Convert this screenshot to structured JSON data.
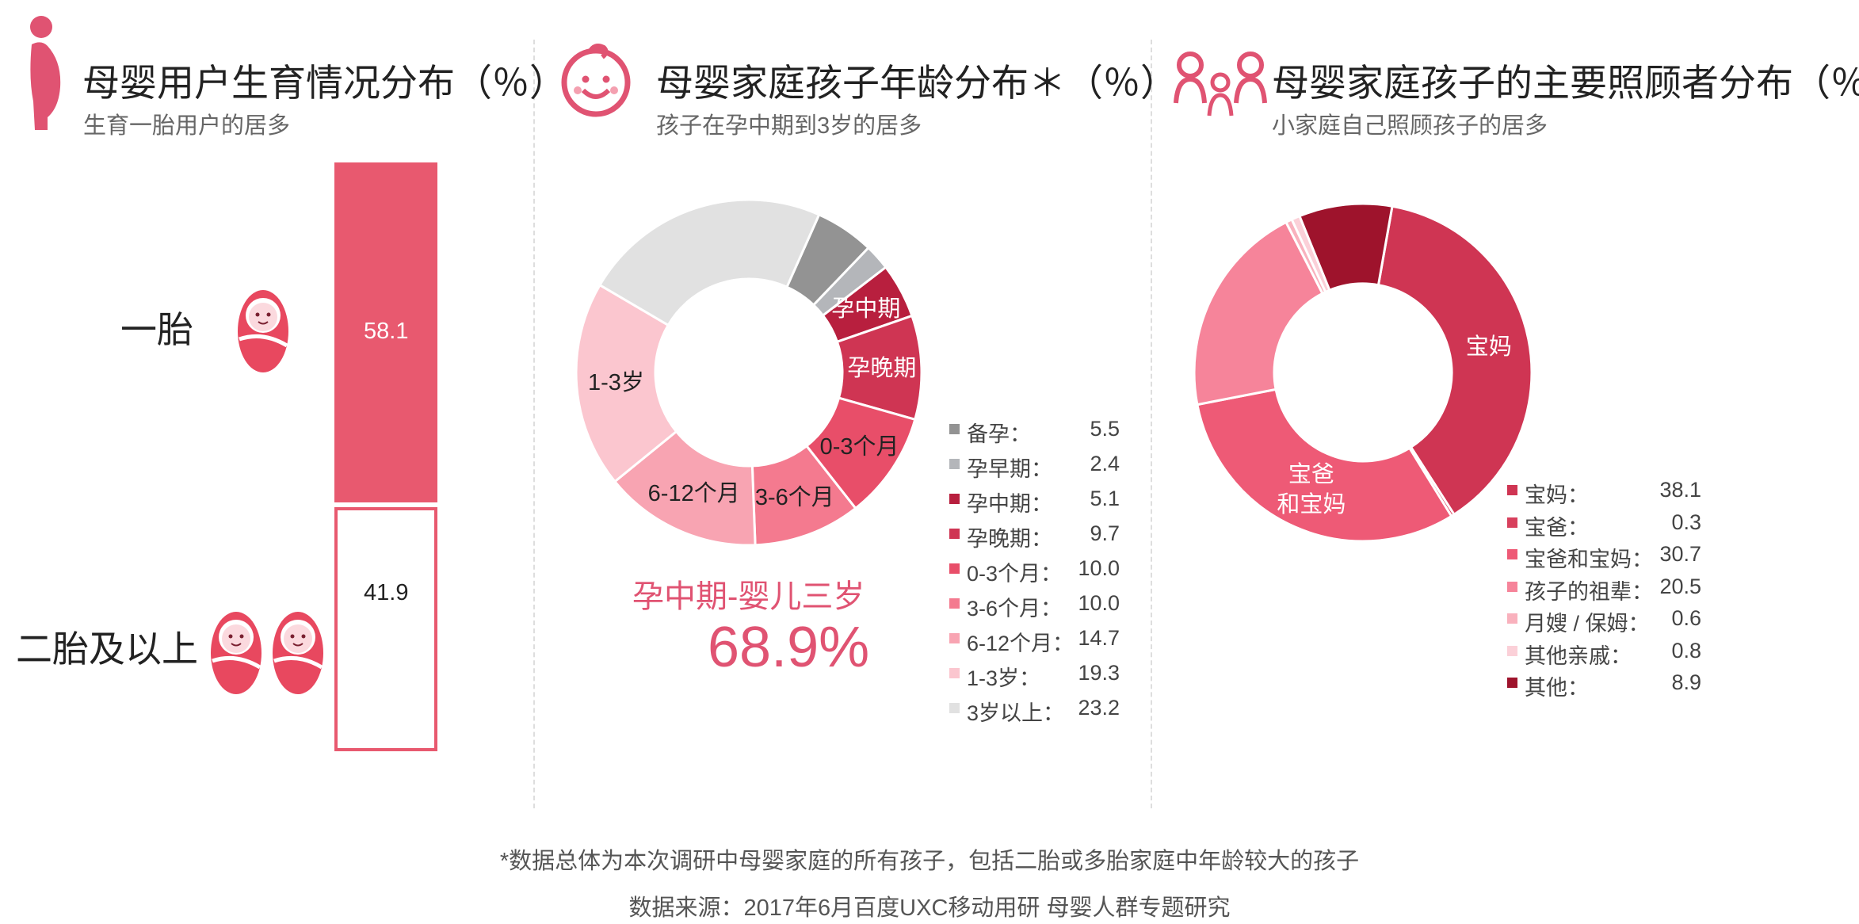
{
  "colors": {
    "accent": "#e05372"
  },
  "sections": {
    "left": {
      "title": "母婴用户生育情况分布（％）",
      "subtitle": "生育一胎用户的居多",
      "icon": "pregnant-woman-icon"
    },
    "middle": {
      "title": "母婴家庭孩子年龄分布＊（％）",
      "subtitle": "孩子在孕中期到3岁的居多",
      "icon": "baby-face-icon"
    },
    "right": {
      "title": "母婴家庭孩子的主要照顾者分布（％）",
      "subtitle": "小家庭自己照顾孩子的居多",
      "icon": "family-icon"
    }
  },
  "chart_data": [
    {
      "type": "bar",
      "categories": [
        "一胎",
        "二胎及以上"
      ],
      "values": [
        58.1,
        41.9
      ],
      "value_labels": [
        "58.1",
        "41.9"
      ],
      "stacked_100": true
    },
    {
      "type": "pie",
      "donut": true,
      "slices": [
        {
          "label": "备孕",
          "legend": "备孕：",
          "value": 5.5,
          "value_text": "5.5",
          "color": "#939393",
          "show_label": false
        },
        {
          "label": "孕早期",
          "legend": "孕早期：",
          "value": 2.4,
          "value_text": "2.4",
          "color": "#b4b6ba",
          "show_label": false
        },
        {
          "label": "孕中期",
          "legend": "孕中期：",
          "value": 5.1,
          "value_text": "5.1",
          "color": "#b81f3e",
          "show_label": true,
          "label_color": "#ffffff"
        },
        {
          "label": "孕晚期",
          "legend": "孕晚期：",
          "value": 9.7,
          "value_text": "9.7",
          "color": "#cf3553",
          "show_label": true,
          "label_color": "#ffffff"
        },
        {
          "label": "0-3个月",
          "legend": "0-3个月：",
          "value": 10.0,
          "value_text": "10.0",
          "color": "#e84e69",
          "show_label": true,
          "label_color": "#222222"
        },
        {
          "label": "3-6个月",
          "legend": "3-6个月：",
          "value": 10.0,
          "value_text": "10.0",
          "color": "#f47a8f",
          "show_label": true,
          "label_color": "#222222"
        },
        {
          "label": "6-12个月",
          "legend": "6-12个月：",
          "value": 14.7,
          "value_text": "14.7",
          "color": "#f8a4b2",
          "show_label": true,
          "label_color": "#222222"
        },
        {
          "label": "1-3岁",
          "legend": "1-3岁：",
          "value": 19.3,
          "value_text": "19.3",
          "color": "#fbc6cf",
          "show_label": true,
          "label_color": "#222222"
        },
        {
          "label": "3岁以上",
          "legend": "3岁以上：",
          "value": 23.2,
          "value_text": "23.2",
          "color": "#e1e1e1",
          "show_label": false
        }
      ],
      "highlight": {
        "label": "孕中期-婴儿三岁",
        "value": "68.9%"
      }
    },
    {
      "type": "pie",
      "donut": true,
      "slices": [
        {
          "label": "宝妈",
          "legend": "宝妈：",
          "value": 38.1,
          "value_text": "38.1",
          "color": "#cf3553",
          "show_label": true,
          "label_color": "#ffffff"
        },
        {
          "label": "宝爸",
          "legend": "宝爸：",
          "value": 0.3,
          "value_text": "0.3",
          "color": "#d8405d",
          "show_label": false
        },
        {
          "label": "宝爸\n和宝妈",
          "legend": "宝爸和宝妈：",
          "value": 30.7,
          "value_text": "30.7",
          "color": "#ee5a76",
          "show_label": true,
          "label_color": "#ffffff"
        },
        {
          "label": "孩子的祖辈",
          "legend": "孩子的祖辈：",
          "value": 20.5,
          "value_text": "20.5",
          "color": "#f6849a",
          "show_label": false
        },
        {
          "label": "月嫂 / 保姆",
          "legend": "月嫂 / 保姆：",
          "value": 0.6,
          "value_text": "0.6",
          "color": "#f9b1bd",
          "show_label": false
        },
        {
          "label": "其他亲戚",
          "legend": "其他亲戚：",
          "value": 0.8,
          "value_text": "0.8",
          "color": "#fbd0d8",
          "show_label": false
        },
        {
          "label": "其他",
          "legend": "其他：",
          "value": 8.9,
          "value_text": "8.9",
          "color": "#9e132c",
          "show_label": false
        }
      ]
    }
  ],
  "footnote": "*数据总体为本次调研中母婴家庭的所有孩子，包括二胎或多胎家庭中年龄较大的孩子",
  "source": "数据来源：2017年6月百度UXC移动用研 母婴人群专题研究"
}
